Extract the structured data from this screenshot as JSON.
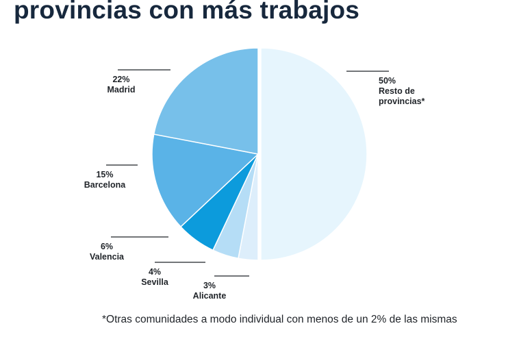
{
  "title": "provincias con más trabajos",
  "footnote": "*Otras comunidades a modo individual con menos de un 2% de las mismas",
  "chart_data": {
    "type": "pie",
    "title": "provincias con más trabajos",
    "slices": [
      {
        "name": "Resto de provincias*",
        "label_lines": [
          "Resto de",
          "provincias*"
        ],
        "value": 50,
        "value_label": "50%",
        "color": "#e6f5fd"
      },
      {
        "name": "Alicante",
        "label_lines": [
          "Alicante"
        ],
        "value": 3,
        "value_label": "3%",
        "color": "#ddeefb"
      },
      {
        "name": "Sevilla",
        "label_lines": [
          "Sevilla"
        ],
        "value": 4,
        "value_label": "4%",
        "color": "#b5ddf6"
      },
      {
        "name": "Valencia",
        "label_lines": [
          "Valencia"
        ],
        "value": 6,
        "value_label": "6%",
        "color": "#0c9bdc"
      },
      {
        "name": "Barcelona",
        "label_lines": [
          "Barcelona"
        ],
        "value": 15,
        "value_label": "15%",
        "color": "#5ab3e7"
      },
      {
        "name": "Madrid",
        "label_lines": [
          "Madrid"
        ],
        "value": 22,
        "value_label": "22%",
        "color": "#77c0ea"
      }
    ]
  }
}
